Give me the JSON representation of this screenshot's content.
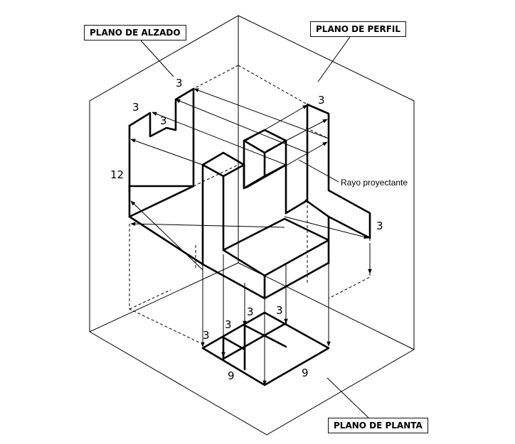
{
  "labels": {
    "plano_alzado": "PLANO DE ALZADO",
    "plano_perfil": "PLANO DE PERFIL",
    "plano_planta": "PLANO DE PLANTA",
    "rayo": "Rayo proyectante"
  },
  "dimensions": {
    "alzado_top": "3",
    "alzado_left_step": "3",
    "alzado_inner_step": "3",
    "height": "12",
    "perfil_top": "3",
    "perfil_right": "3",
    "planta_3a": "3",
    "planta_3b": "3",
    "planta_3c": "3",
    "planta_3d": "3",
    "planta_9_left": "9",
    "planta_9_right": "9"
  }
}
